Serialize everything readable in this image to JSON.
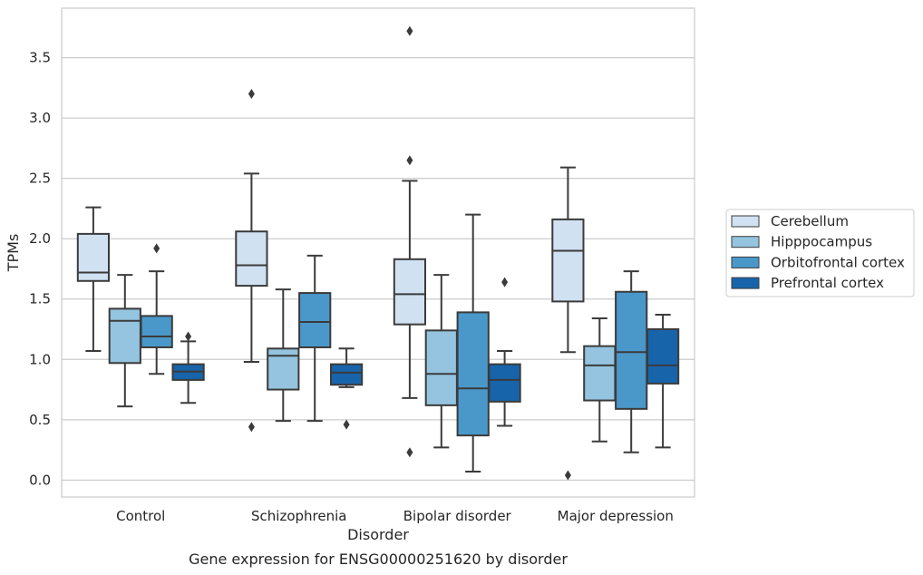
{
  "chart_data": {
    "type": "box",
    "title": "",
    "caption": "Gene expression for ENSG00000251620 by disorder",
    "xlabel": "Disorder",
    "ylabel": "TPMs",
    "ylim": [
      -0.14,
      3.91
    ],
    "yticks": [
      "0.0",
      "0.5",
      "1.0",
      "1.5",
      "2.0",
      "2.5",
      "3.0",
      "3.5"
    ],
    "grid": "horizontal",
    "legend_position": "right",
    "categories": [
      "Control",
      "Schizophrenia",
      "Bipolar disorder",
      "Major depression"
    ],
    "series": [
      {
        "name": "Cerebellum",
        "color": "#d0e1f2",
        "boxes": [
          {
            "whisker_low": 1.07,
            "q1": 1.65,
            "median": 1.72,
            "q3": 2.04,
            "whisker_high": 2.26,
            "outliers": []
          },
          {
            "whisker_low": 0.98,
            "q1": 1.61,
            "median": 1.78,
            "q3": 2.06,
            "whisker_high": 2.54,
            "outliers": [
              3.2,
              0.44
            ]
          },
          {
            "whisker_low": 0.68,
            "q1": 1.29,
            "median": 1.54,
            "q3": 1.83,
            "whisker_high": 2.48,
            "outliers": [
              3.72,
              2.65,
              0.23
            ]
          },
          {
            "whisker_low": 1.06,
            "q1": 1.48,
            "median": 1.9,
            "q3": 2.16,
            "whisker_high": 2.59,
            "outliers": [
              0.04
            ]
          }
        ]
      },
      {
        "name": "Hipppocampus",
        "color": "#94c4df",
        "boxes": [
          {
            "whisker_low": 0.61,
            "q1": 0.97,
            "median": 1.32,
            "q3": 1.42,
            "whisker_high": 1.7,
            "outliers": []
          },
          {
            "whisker_low": 0.49,
            "q1": 0.75,
            "median": 1.03,
            "q3": 1.09,
            "whisker_high": 1.58,
            "outliers": []
          },
          {
            "whisker_low": 0.27,
            "q1": 0.62,
            "median": 0.88,
            "q3": 1.24,
            "whisker_high": 1.7,
            "outliers": []
          },
          {
            "whisker_low": 0.32,
            "q1": 0.66,
            "median": 0.95,
            "q3": 1.11,
            "whisker_high": 1.34,
            "outliers": []
          }
        ]
      },
      {
        "name": "Orbitofrontal cortex",
        "color": "#4a98c9",
        "boxes": [
          {
            "whisker_low": 0.88,
            "q1": 1.1,
            "median": 1.19,
            "q3": 1.36,
            "whisker_high": 1.73,
            "outliers": [
              1.92
            ]
          },
          {
            "whisker_low": 0.49,
            "q1": 1.1,
            "median": 1.31,
            "q3": 1.55,
            "whisker_high": 1.86,
            "outliers": []
          },
          {
            "whisker_low": 0.07,
            "q1": 0.37,
            "median": 0.76,
            "q3": 1.39,
            "whisker_high": 2.2,
            "outliers": []
          },
          {
            "whisker_low": 0.23,
            "q1": 0.59,
            "median": 1.06,
            "q3": 1.56,
            "whisker_high": 1.73,
            "outliers": []
          }
        ]
      },
      {
        "name": "Prefrontal cortex",
        "color": "#1764ab",
        "boxes": [
          {
            "whisker_low": 0.64,
            "q1": 0.83,
            "median": 0.9,
            "q3": 0.96,
            "whisker_high": 1.15,
            "outliers": [
              1.19
            ]
          },
          {
            "whisker_low": 0.77,
            "q1": 0.79,
            "median": 0.89,
            "q3": 0.96,
            "whisker_high": 1.09,
            "outliers": [
              0.46
            ]
          },
          {
            "whisker_low": 0.45,
            "q1": 0.65,
            "median": 0.83,
            "q3": 0.96,
            "whisker_high": 1.07,
            "outliers": [
              1.64
            ]
          },
          {
            "whisker_low": 0.27,
            "q1": 0.8,
            "median": 0.95,
            "q3": 1.25,
            "whisker_high": 1.37,
            "outliers": []
          }
        ]
      }
    ]
  }
}
